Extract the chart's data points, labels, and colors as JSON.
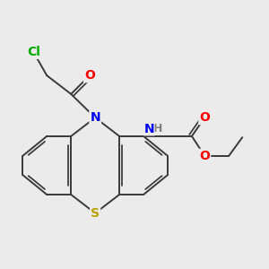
{
  "background_color": "#ebebeb",
  "bond_color": "#3a3a3a",
  "bond_width": 1.4,
  "atom_colors": {
    "N": "#0000ee",
    "S": "#b8a000",
    "O": "#ff0000",
    "Cl": "#00aa00",
    "H": "#808080",
    "C": "#3a3a3a"
  },
  "font_size_atom": 10,
  "font_size_small": 9
}
